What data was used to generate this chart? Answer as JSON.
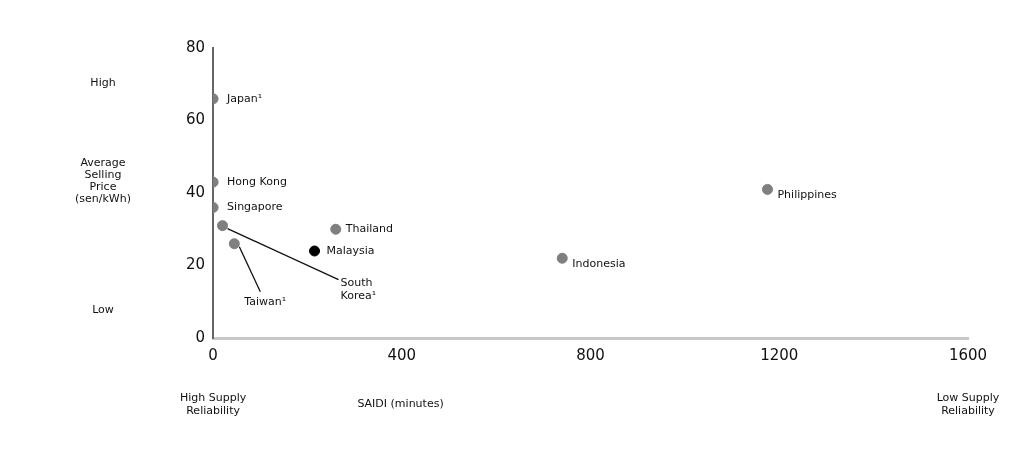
{
  "chart_data": {
    "type": "scatter",
    "xlabel": "SAIDI (minutes)",
    "ylabel": "Average Selling Price (sen/kWh)",
    "x": [
      0,
      0,
      0,
      20,
      45,
      260,
      215,
      740,
      1175
    ],
    "values": [
      66,
      43,
      36,
      31,
      26,
      30,
      24,
      22,
      41
    ],
    "colors": [
      "#7f7f7f",
      "#7f7f7f",
      "#7f7f7f",
      "#7f7f7f",
      "#7f7f7f",
      "#7f7f7f",
      "#000000",
      "#7f7f7f",
      "#7f7f7f"
    ],
    "marker": "circle",
    "grid": false,
    "legend": false,
    "xlim": [
      0,
      1600
    ],
    "xticks": [
      0,
      400,
      800,
      1200,
      1600
    ],
    "ylim": [
      0,
      80
    ],
    "yticks": [
      0,
      20,
      40,
      60,
      80
    ],
    "annotations": [
      {
        "text": "Japan¹",
        "x": 0,
        "y": 66
      },
      {
        "text": "Hong Kong",
        "x": 0,
        "y": 43
      },
      {
        "text": "Singapore",
        "x": 0,
        "y": 36
      },
      {
        "text": "South Korea¹",
        "x": 20,
        "y": 31
      },
      {
        "text": "Taiwan¹",
        "x": 45,
        "y": 26
      },
      {
        "text": "Thailand",
        "x": 260,
        "y": 30
      },
      {
        "text": "Malaysia",
        "x": 215,
        "y": 24
      },
      {
        "text": "Indonesia",
        "x": 740,
        "y": 22
      },
      {
        "text": "Philippines",
        "x": 1175,
        "y": 41
      },
      "High",
      "Low",
      "High Supply Reliability",
      "Low Supply Reliability"
    ]
  }
}
